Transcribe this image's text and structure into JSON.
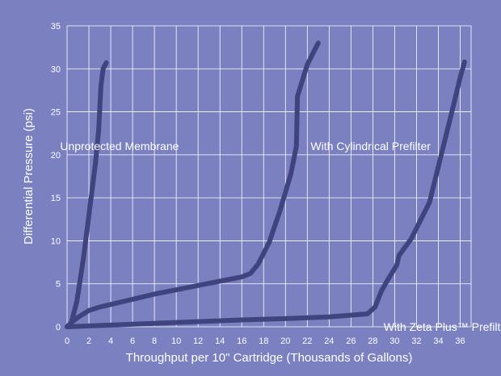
{
  "chart_data": {
    "type": "line",
    "xlabel": "Throughput per 10\" Cartridge (Thousands of Gallons)",
    "ylabel": "Differential Pressure (psi)",
    "xlim": [
      0,
      37
    ],
    "ylim": [
      0,
      35
    ],
    "x_ticks": [
      0,
      2,
      4,
      6,
      8,
      10,
      12,
      14,
      16,
      18,
      20,
      22,
      24,
      26,
      28,
      30,
      32,
      34,
      36
    ],
    "y_ticks": [
      0,
      5,
      10,
      15,
      20,
      25,
      30,
      35
    ],
    "grid": true,
    "legend": "none",
    "colors": {
      "background": "#7b80c1",
      "grid": "#ffffff",
      "line": "#3f437e",
      "text": "#ffffff"
    },
    "series": [
      {
        "name": "Unprotected Membrane",
        "points": [
          [
            0,
            0
          ],
          [
            0.4,
            0.5
          ],
          [
            0.9,
            3
          ],
          [
            1.5,
            8
          ],
          [
            2.1,
            14
          ],
          [
            2.6,
            19
          ],
          [
            2.9,
            23
          ],
          [
            3.1,
            28
          ],
          [
            3.3,
            30
          ],
          [
            3.6,
            30.7
          ]
        ]
      },
      {
        "name": "With Cylindrical Prefilter",
        "points": [
          [
            0,
            0
          ],
          [
            0.5,
            0.6
          ],
          [
            1,
            1.1
          ],
          [
            2,
            1.9
          ],
          [
            3,
            2.3
          ],
          [
            4,
            2.6
          ],
          [
            6,
            3.2
          ],
          [
            8,
            3.8
          ],
          [
            10,
            4.3
          ],
          [
            12,
            4.8
          ],
          [
            14,
            5.3
          ],
          [
            16,
            5.8
          ],
          [
            16.8,
            6.2
          ],
          [
            17.5,
            7.3
          ],
          [
            18.5,
            9.8
          ],
          [
            19.5,
            13.5
          ],
          [
            20.5,
            17.8
          ],
          [
            21,
            21
          ],
          [
            21.1,
            26.8
          ],
          [
            22,
            30.5
          ],
          [
            23,
            33
          ]
        ]
      },
      {
        "name": "With Zeta Plus™ Prefilter",
        "points": [
          [
            0,
            0
          ],
          [
            4,
            0.2
          ],
          [
            8,
            0.4
          ],
          [
            12,
            0.6
          ],
          [
            16,
            0.8
          ],
          [
            20,
            0.95
          ],
          [
            24,
            1.15
          ],
          [
            27.5,
            1.5
          ],
          [
            28.2,
            2.3
          ],
          [
            28.8,
            4.2
          ],
          [
            29.3,
            5.3
          ],
          [
            30.2,
            7.2
          ],
          [
            30.4,
            8.3
          ],
          [
            31.5,
            10.2
          ],
          [
            33.2,
            14.5
          ],
          [
            35.2,
            24.8
          ],
          [
            36,
            29
          ],
          [
            36.4,
            30.8
          ]
        ]
      }
    ],
    "annotations": [
      {
        "text": "Unprotected Membrane",
        "x": 4.8,
        "y": 21
      },
      {
        "text": "With Cylindrical Prefilter",
        "x": 27.8,
        "y": 21
      },
      {
        "text": "With Zeta Plus™ Prefilter",
        "x": 34.8,
        "y": 0
      }
    ]
  }
}
